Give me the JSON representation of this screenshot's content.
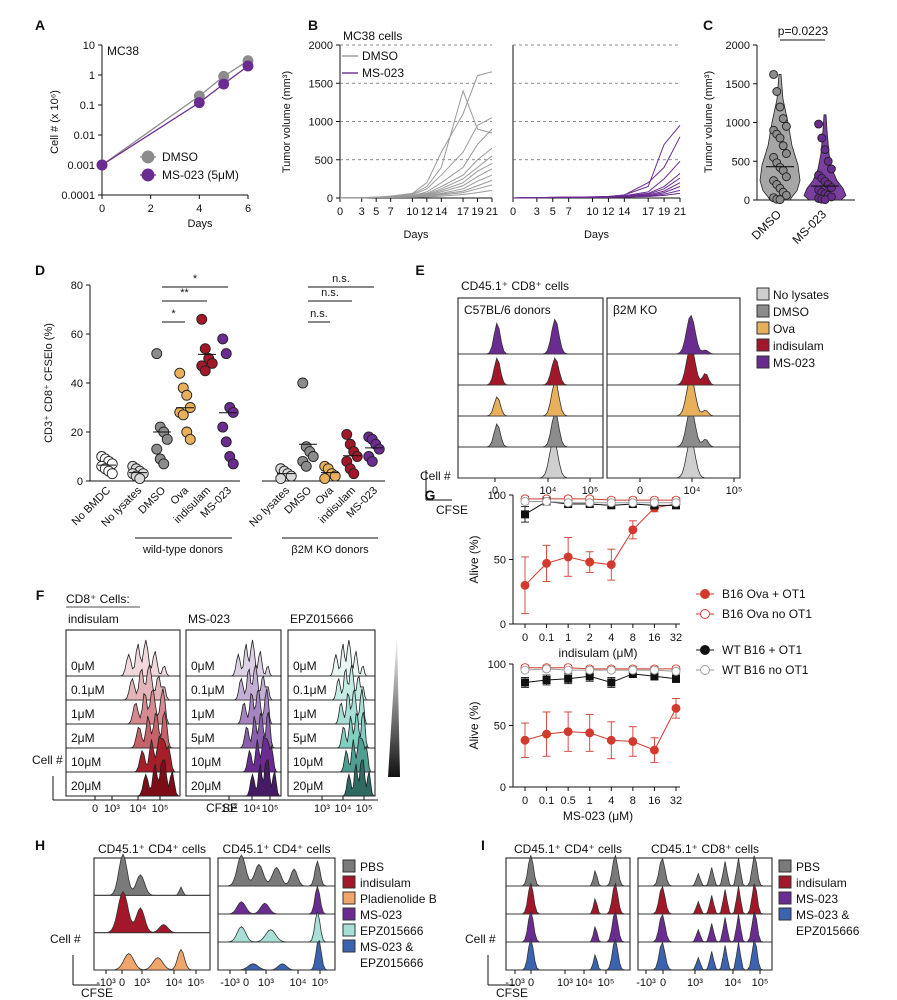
{
  "colors": {
    "dmso": "#8c8c8c",
    "ms023": "#6a2c91",
    "ova": "#e8b05a",
    "indisulam": "#a2182a",
    "gray_light": "#c8c8c8",
    "pbs": "#7a7a7a",
    "pladienolide": "#f0a56a",
    "epz": "#a8e0d8",
    "combo": "#3b63b0",
    "red": "#d23a2e"
  },
  "panels": {
    "A": {
      "label": "A",
      "inner_title": "MC38",
      "ylabel": "Cell # (x 10⁶)",
      "xlabel": "Days",
      "yticks": [
        "10",
        "1",
        "0.1",
        "0.01",
        "0.001",
        "0.0001"
      ],
      "xticks": [
        "0",
        "2",
        "4",
        "6"
      ],
      "legend": [
        "DMSO",
        "MS-023 (5μM)"
      ]
    },
    "B": {
      "label": "B",
      "inner_title": "MC38 cells",
      "ylabel": "Tumor volume (mm³)",
      "xlabel": "Days",
      "yticks": [
        "2000",
        "1500",
        "1000",
        "500",
        "0"
      ],
      "xticks": [
        "0",
        "3",
        "5",
        "7",
        "10",
        "12",
        "14",
        "17",
        "19",
        "21"
      ],
      "legend": [
        "DMSO",
        "MS-023"
      ]
    },
    "C": {
      "label": "C",
      "pvalue": "p=0.0223",
      "ylabel": "Tumor volume (mm³)",
      "yticks": [
        "2000",
        "1500",
        "1000",
        "500",
        "0"
      ],
      "groups": [
        "DMSO",
        "MS-023"
      ]
    },
    "D": {
      "label": "D",
      "ylabel": "CD3⁺ CD8⁺ CFSElo (%)",
      "yticks": [
        "80",
        "60",
        "40",
        "20",
        "0"
      ],
      "categories": [
        "No BMDC",
        "No lysates",
        "DMSO",
        "Ova",
        "indisulam",
        "MS-023",
        "No lysates",
        "DMSO",
        "Ova",
        "indisulam",
        "MS-023"
      ],
      "group_labels": [
        "wild-type donors",
        "β2M KO donors"
      ],
      "sig": [
        "*",
        "**",
        "*",
        "n.s.",
        "n.s.",
        "n.s."
      ]
    },
    "E": {
      "label": "E",
      "title": "CD45.1⁺ CD8⁺ cells",
      "subpanels": [
        "C57BL/6 donors",
        "β2M KO"
      ],
      "xticks": [
        "0",
        "10⁴",
        "10⁵"
      ],
      "ylabel": "Cell #",
      "xlabel": "CFSE",
      "legend": [
        "No lysates",
        "DMSO",
        "Ova",
        "indisulam",
        "MS-023"
      ]
    },
    "F": {
      "label": "F",
      "title": "CD8⁺ Cells:",
      "subpanels": [
        "indisulam",
        "MS-023",
        "EPZ015666"
      ],
      "doses_indisulam": [
        "0μM",
        "0.1μM",
        "1μM",
        "2μM",
        "10μM",
        "20μM"
      ],
      "doses_ms023": [
        "0μM",
        "0.1μM",
        "1μM",
        "5μM",
        "10μM",
        "20μM"
      ],
      "doses_epz": [
        "0μM",
        "0.1μM",
        "1μM",
        "5μM",
        "10μM",
        "20μM"
      ],
      "xticks": [
        "0",
        "10³",
        "10⁴",
        "10⁵"
      ],
      "ylabel": "Cell #",
      "xlabel": "CFSE"
    },
    "G": {
      "label": "G",
      "ylabel": "Alive (%)",
      "yticks": [
        "100",
        "50",
        "0"
      ],
      "xticks_top": [
        "0",
        "0.1",
        "1",
        "2",
        "4",
        "8",
        "16",
        "32"
      ],
      "xlabel_top": "indisulam (μM)",
      "xticks_bottom": [
        "0",
        "0.1",
        "0.5",
        "1",
        "4",
        "8",
        "16",
        "32"
      ],
      "xlabel_bottom": "MS-023 (μM)",
      "legend": [
        "B16 Ova + OT1",
        "B16 Ova no OT1",
        "WT B16 + OT1",
        "WT B16 no OT1"
      ]
    },
    "H": {
      "label": "H",
      "subtitles": [
        "CD45.1⁺ CD4⁺ cells",
        "CD45.1⁺ CD4⁺ cells"
      ],
      "xticks": [
        "-10³",
        "0",
        "10³",
        "10⁴",
        "10⁵"
      ],
      "ylabel": "Cell #",
      "xlabel": "CFSE",
      "legend": [
        "PBS",
        "indisulam",
        "Pladienolide B",
        "MS-023",
        "EPZ015666",
        "MS-023 &",
        "EPZ015666"
      ]
    },
    "I": {
      "label": "I",
      "subtitles": [
        "CD45.1⁺ CD4⁺ cells",
        "CD45.1⁺ CD8⁺ cells"
      ],
      "xticks": [
        "-10³",
        "0",
        "10³",
        "10⁴",
        "10⁵"
      ],
      "ylabel": "Cell #",
      "xlabel": "CFSE",
      "legend": [
        "PBS",
        "indisulam",
        "MS-023",
        "MS-023 &",
        "EPZ015666"
      ]
    }
  },
  "chart_data": [
    {
      "id": "A",
      "type": "line",
      "title": "MC38",
      "xlabel": "Days",
      "ylabel": "Cell # (x 10⁶)",
      "yscale": "log",
      "ylim": [
        0.0001,
        10
      ],
      "xlim": [
        0,
        6
      ],
      "x": [
        0,
        4,
        5,
        6
      ],
      "series": [
        {
          "name": "DMSO",
          "values": [
            0.001,
            0.2,
            0.9,
            3
          ]
        },
        {
          "name": "MS-023 (5μM)",
          "values": [
            0.001,
            0.12,
            0.5,
            2
          ]
        }
      ]
    },
    {
      "id": "B",
      "type": "line",
      "title": "MC38 cells",
      "xlabel": "Days",
      "ylabel": "Tumor volume (mm³)",
      "ylim": [
        0,
        2000
      ],
      "x": [
        0,
        3,
        5,
        7,
        10,
        12,
        14,
        17,
        19,
        21
      ],
      "series": [
        {
          "name": "DMSO",
          "curves": [
            [
              0,
              5,
              10,
              25,
              60,
              200,
              600,
              1100,
              1600,
              1650
            ],
            [
              0,
              5,
              10,
              20,
              50,
              150,
              400,
              1400,
              900,
              850
            ],
            [
              0,
              5,
              10,
              20,
              40,
              120,
              300,
              600,
              950,
              1050
            ],
            [
              0,
              5,
              8,
              15,
              30,
              80,
              200,
              400,
              700,
              900
            ],
            [
              0,
              5,
              8,
              15,
              30,
              60,
              150,
              300,
              500,
              650
            ],
            [
              0,
              5,
              8,
              12,
              25,
              50,
              120,
              250,
              400,
              550
            ],
            [
              0,
              5,
              8,
              12,
              20,
              40,
              100,
              200,
              350,
              450
            ],
            [
              0,
              5,
              8,
              10,
              20,
              35,
              80,
              160,
              280,
              380
            ],
            [
              0,
              5,
              6,
              10,
              18,
              30,
              60,
              120,
              220,
              300
            ],
            [
              0,
              5,
              6,
              10,
              15,
              25,
              50,
              90,
              160,
              230
            ],
            [
              0,
              5,
              6,
              8,
              12,
              20,
              40,
              70,
              120,
              170
            ],
            [
              0,
              5,
              6,
              8,
              10,
              15,
              25,
              45,
              70,
              100
            ]
          ]
        },
        {
          "name": "MS-023",
          "curves": [
            [
              0,
              5,
              8,
              10,
              15,
              20,
              40,
              150,
              700,
              950
            ],
            [
              0,
              5,
              8,
              10,
              15,
              20,
              40,
              200,
              400,
              800
            ],
            [
              0,
              5,
              8,
              10,
              12,
              18,
              30,
              80,
              250,
              480
            ],
            [
              0,
              5,
              6,
              8,
              10,
              15,
              25,
              60,
              150,
              320
            ],
            [
              0,
              5,
              6,
              8,
              10,
              12,
              20,
              50,
              120,
              260
            ],
            [
              0,
              5,
              6,
              8,
              10,
              12,
              20,
              40,
              90,
              200
            ],
            [
              0,
              5,
              6,
              8,
              10,
              12,
              18,
              30,
              70,
              150
            ],
            [
              0,
              5,
              6,
              8,
              10,
              10,
              15,
              25,
              50,
              100
            ],
            [
              0,
              5,
              6,
              6,
              8,
              10,
              12,
              20,
              35,
              60
            ]
          ]
        }
      ]
    },
    {
      "id": "C",
      "type": "scatter",
      "ylabel": "Tumor volume (mm³)",
      "ylim": [
        0,
        2000
      ],
      "categories": [
        "DMSO",
        "MS-023"
      ],
      "series": [
        {
          "name": "DMSO",
          "values": [
            1620,
            1400,
            1200,
            1050,
            950,
            900,
            850,
            800,
            700,
            600,
            550,
            480,
            420,
            380,
            300,
            250,
            200,
            150,
            100,
            60,
            30,
            10,
            5
          ]
        },
        {
          "name": "MS-023",
          "values": [
            980,
            800,
            650,
            500,
            400,
            320,
            280,
            240,
            200,
            160,
            130,
            100,
            80,
            60,
            40,
            20,
            10,
            5
          ]
        }
      ]
    },
    {
      "id": "D",
      "type": "scatter",
      "ylabel": "CD3⁺ CD8⁺ CFSElo (%)",
      "ylim": [
        0,
        80
      ],
      "categories": [
        "No BMDC",
        "No lysates",
        "DMSO",
        "Ova",
        "indisulam",
        "MS-023",
        "No lysates",
        "DMSO",
        "Ova",
        "indisulam",
        "MS-023"
      ],
      "series": [
        {
          "name": "No BMDC",
          "values": [
            10,
            9,
            8,
            7,
            6,
            5,
            4,
            3
          ]
        },
        {
          "name": "No lysates (wild-type)",
          "values": [
            6,
            5,
            4,
            3,
            3,
            2,
            1
          ]
        },
        {
          "name": "DMSO (wild-type)",
          "values": [
            52,
            22,
            20,
            17,
            13,
            9,
            7
          ]
        },
        {
          "name": "Ova (wild-type)",
          "values": [
            44,
            38,
            35,
            30,
            28,
            27,
            20,
            17
          ]
        },
        {
          "name": "indisulam (wild-type)",
          "values": [
            66,
            54,
            50,
            48,
            47,
            45
          ]
        },
        {
          "name": "MS-023 (wild-type)",
          "values": [
            58,
            52,
            30,
            28,
            22,
            16,
            10,
            7
          ]
        },
        {
          "name": "No lysates (β2M KO)",
          "values": [
            5,
            4,
            3,
            2,
            1
          ]
        },
        {
          "name": "DMSO (β2M KO)",
          "values": [
            40,
            14,
            12,
            10,
            8,
            6
          ]
        },
        {
          "name": "Ova (β2M KO)",
          "values": [
            6,
            5,
            3,
            2,
            1
          ]
        },
        {
          "name": "indisulam (β2M KO)",
          "values": [
            19,
            15,
            12,
            10,
            8,
            5,
            3
          ]
        },
        {
          "name": "MS-023 (β2M KO)",
          "values": [
            18,
            17,
            15,
            13,
            10,
            8
          ]
        }
      ]
    },
    {
      "id": "G-top",
      "type": "line",
      "ylabel": "Alive (%)",
      "xlabel": "indisulam (μM)",
      "ylim": [
        0,
        100
      ],
      "categories": [
        "0",
        "0.1",
        "1",
        "2",
        "4",
        "8",
        "16",
        "32"
      ],
      "series": [
        {
          "name": "B16 Ova + OT1",
          "values": [
            30,
            47,
            52,
            48,
            46,
            73,
            90,
            93
          ],
          "err": [
            22,
            14,
            15,
            8,
            12,
            7,
            3,
            2
          ]
        },
        {
          "name": "B16 Ova no OT1",
          "values": [
            97,
            97,
            97,
            97,
            96,
            96,
            96,
            96
          ],
          "err": [
            2,
            2,
            2,
            2,
            2,
            2,
            2,
            2
          ]
        },
        {
          "name": "WT B16 + OT1",
          "values": [
            85,
            95,
            93,
            93,
            92,
            93,
            92,
            92
          ],
          "err": [
            6,
            2,
            2,
            2,
            2,
            2,
            2,
            2
          ]
        },
        {
          "name": "WT B16 no OT1",
          "values": [
            95,
            95,
            94,
            94,
            94,
            94,
            94,
            94
          ],
          "err": [
            2,
            2,
            2,
            2,
            2,
            2,
            2,
            2
          ]
        }
      ]
    },
    {
      "id": "G-bottom",
      "type": "line",
      "ylabel": "Alive (%)",
      "xlabel": "MS-023 (μM)",
      "ylim": [
        0,
        100
      ],
      "categories": [
        "0",
        "0.1",
        "0.5",
        "1",
        "4",
        "8",
        "16",
        "32"
      ],
      "series": [
        {
          "name": "B16 Ova + OT1",
          "values": [
            38,
            43,
            45,
            44,
            38,
            37,
            30,
            64
          ],
          "err": [
            14,
            18,
            16,
            15,
            15,
            12,
            10,
            8
          ]
        },
        {
          "name": "B16 Ova no OT1",
          "values": [
            97,
            97,
            97,
            96,
            96,
            96,
            96,
            96
          ],
          "err": [
            2,
            2,
            2,
            2,
            2,
            2,
            2,
            2
          ]
        },
        {
          "name": "WT B16 + OT1",
          "values": [
            85,
            87,
            88,
            90,
            85,
            92,
            90,
            88
          ],
          "err": [
            4,
            4,
            4,
            4,
            4,
            3,
            3,
            3
          ]
        },
        {
          "name": "WT B16 no OT1",
          "values": [
            95,
            96,
            95,
            95,
            95,
            95,
            95,
            94
          ],
          "err": [
            2,
            2,
            2,
            2,
            2,
            2,
            2,
            2
          ]
        }
      ]
    }
  ]
}
